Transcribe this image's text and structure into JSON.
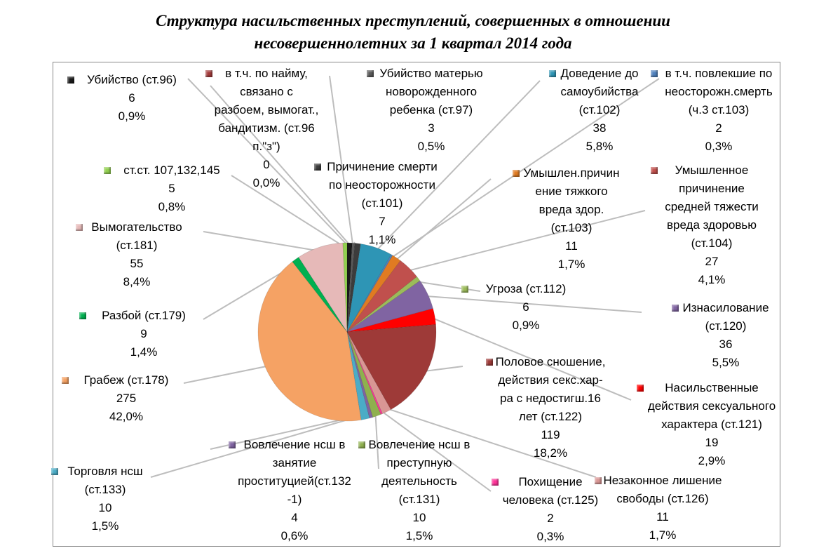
{
  "chart_data": {
    "type": "pie",
    "title": "Структура насильственных преступлений, совершенных в отношении несовершеннолетних за 1 квартал 2014 года",
    "title_lines": [
      "Структура насильственных преступлений, совершенных в отношении",
      "несовершеннолетних за 1 квартал 2014 года"
    ],
    "slices": [
      {
        "label": "Убийство (ст.96)",
        "lines": [
          "Убийство (ст.96)"
        ],
        "value": 6,
        "percent": "0,9%",
        "color": "#1a1a1a"
      },
      {
        "label": "в т.ч. по найму, связано с разбоем, вымогат., бандитизм. (ст.96 п.\"з\")",
        "lines": [
          "в т.ч. по найму,",
          "связано с разбоем,",
          "вымогат.,",
          "бандитизм. (ст.96",
          "п.\"з\")"
        ],
        "value": 0,
        "percent": "0,0%",
        "color": "#a33b3b"
      },
      {
        "label": "Убийство матерью новорожденного ребенка (ст.97)",
        "lines": [
          "Убийство матерью",
          "новорожденного",
          "ребенка (ст.97)"
        ],
        "value": 3,
        "percent": "0,5%",
        "color": "#5a5a5a"
      },
      {
        "label": "Причинение смерти по неосторожности (ст.101)",
        "lines": [
          "Причинение смерти",
          "по неосторожности",
          "(ст.101)"
        ],
        "value": 7,
        "percent": "1,1%",
        "color": "#3c3c3c"
      },
      {
        "label": "Доведение до самоубийства (ст.102)",
        "lines": [
          "Доведение до",
          "самоубийства",
          "(ст.102)"
        ],
        "value": 38,
        "percent": "5,8%",
        "color": "#2e95b5"
      },
      {
        "label": "в т.ч. повлекшие по неосторожн.смерть (ч.3 ст.103)",
        "lines": [
          "в т.ч. повлекшие по",
          "неосторожн.смерть",
          "(ч.3 ст.103)"
        ],
        "value": 2,
        "percent": "0,3%",
        "color": "#4f81bd"
      },
      {
        "label": "Умышлен.причинение тяжкого вреда здор.(ст.103)",
        "lines": [
          "Умышлен.причинен",
          "ие тяжкого вреда",
          "здор.(ст.103)"
        ],
        "value": 11,
        "percent": "1,7%",
        "color": "#e07b22"
      },
      {
        "label": "Умышленное причинение средней тяжести вреда здоровью (ст.104)",
        "lines": [
          "Умышленное",
          "причинение",
          "средней тяжести",
          "вреда здоровью",
          "(ст.104)"
        ],
        "value": 27,
        "percent": "4,1%",
        "color": "#c0504d"
      },
      {
        "label": "Угроза (ст.112)",
        "lines": [
          "Угроза (ст.112)"
        ],
        "value": 6,
        "percent": "0,9%",
        "color": "#9bbb59"
      },
      {
        "label": "Изнасилование (ст.120)",
        "lines": [
          "Изнасилование",
          "(ст.120)"
        ],
        "value": 36,
        "percent": "5,5%",
        "color": "#8064a2"
      },
      {
        "label": "Насильственные действия сексуального характера (ст.121)",
        "lines": [
          "Насильственные",
          "действия",
          "сексуального",
          "характера (ст.121)"
        ],
        "value": 19,
        "percent": "2,9%",
        "color": "#ff0000"
      },
      {
        "label": "Половое сношение, действия секс.хар-ра с недостигш.16 лет (ст.122)",
        "lines": [
          "Половое сношение,",
          "действия секс.хар-",
          "ра с недостигш.16",
          "лет (ст.122)"
        ],
        "value": 119,
        "percent": "18,2%",
        "color": "#9e3a38"
      },
      {
        "label": "Незаконное лишение свободы (ст.126)",
        "lines": [
          "Незаконное",
          "лишение свободы",
          "(ст.126)"
        ],
        "value": 11,
        "percent": "1,7%",
        "color": "#d99694"
      },
      {
        "label": "Похищение человека (ст.125)",
        "lines": [
          "Похищение",
          "человека (ст.125)"
        ],
        "value": 2,
        "percent": "0,3%",
        "color": "#ff3399"
      },
      {
        "label": "Вовлечение нсш в преступную деятельность (ст.131)",
        "lines": [
          "Вовлечение нсш в",
          "преступную",
          "деятельность",
          "(ст.131)"
        ],
        "value": 10,
        "percent": "1,5%",
        "color": "#8fb04e"
      },
      {
        "label": "Вовлечение нсш в занятие проституцией(ст.132-1)",
        "lines": [
          "Вовлечение нсш в",
          "занятие",
          "проституцией(ст.132",
          "-1)"
        ],
        "value": 4,
        "percent": "0,6%",
        "color": "#7f63a1"
      },
      {
        "label": "Торговля нсш (ст.133)",
        "lines": [
          "Торговля нсш",
          "(ст.133)"
        ],
        "value": 10,
        "percent": "1,5%",
        "color": "#4bacc6"
      },
      {
        "label": "Грабеж (ст.178)",
        "lines": [
          "Грабеж (ст.178)"
        ],
        "value": 275,
        "percent": "42,0%",
        "color": "#f5a264"
      },
      {
        "label": "Разбой (ст.179)",
        "lines": [
          "Разбой (ст.179)"
        ],
        "value": 9,
        "percent": "1,4%",
        "color": "#00b050"
      },
      {
        "label": "Вымогательство (ст.181)",
        "lines": [
          "Вымогательство",
          "(ст.181)"
        ],
        "value": 55,
        "percent": "8,4%",
        "color": "#e6b9b8"
      },
      {
        "label": "ст.ст. 107,132,145",
        "lines": [
          "ст.ст. 107,132,145"
        ],
        "value": 5,
        "percent": "0,8%",
        "color": "#92d050"
      }
    ],
    "legend": "none"
  }
}
